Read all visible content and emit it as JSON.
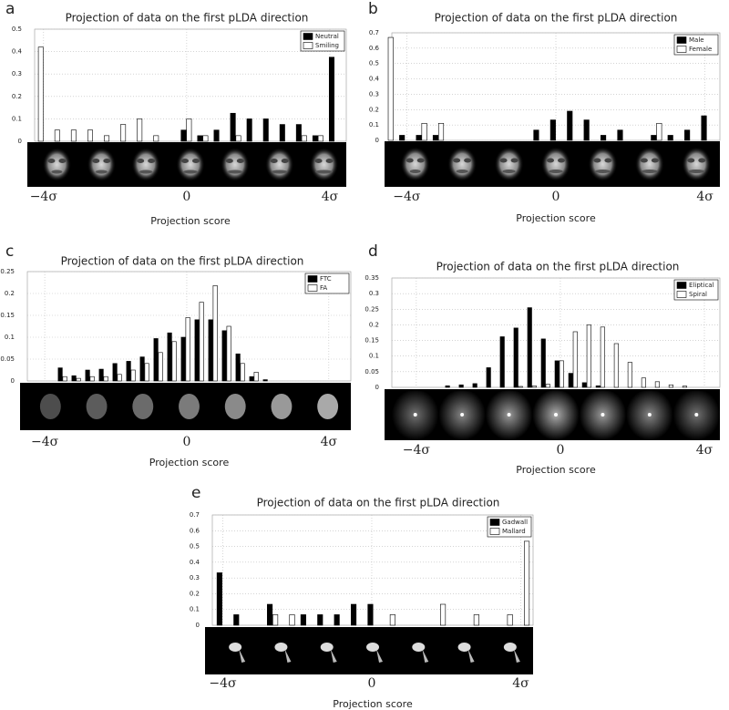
{
  "chart_data": [
    {
      "type": "bar",
      "label": "a",
      "title": "Projection of data on the first pLDA direction",
      "xlabel": "Projection score",
      "x": [
        -4.2,
        -3.74,
        -3.28,
        -2.82,
        -2.36,
        -1.9,
        -1.44,
        -0.98,
        -0.52,
        -0.06,
        0.4,
        0.86,
        1.32,
        1.78,
        2.24,
        2.7,
        3.16,
        3.62,
        4.08
      ],
      "series": [
        {
          "name": "Neutral",
          "color": "#000000",
          "values": [
            0,
            0,
            0,
            0,
            0,
            0,
            0,
            0,
            0,
            0.05,
            0.025,
            0.05,
            0.125,
            0.1,
            0.1,
            0.075,
            0.075,
            0.025,
            0.375
          ]
        },
        {
          "name": "Smiling",
          "color": "#ffffff",
          "values": [
            0.42,
            0.05,
            0.05,
            0.05,
            0.025,
            0.075,
            0.1,
            0.025,
            0,
            0.1,
            0.025,
            0,
            0.025,
            0,
            0,
            0,
            0.025,
            0.025,
            0
          ]
        }
      ],
      "xlim": [
        -4.25,
        4.46
      ],
      "xticks": [
        {
          "value": -4,
          "label": "−4σ"
        },
        0,
        {
          "value": 4,
          "label": "4σ"
        }
      ],
      "ylim": [
        0,
        0.5
      ],
      "yticks": [
        0,
        0.1,
        0.2,
        0.3,
        0.4,
        0.5
      ],
      "grid": true,
      "legend": "upper right"
    },
    {
      "type": "bar",
      "label": "b",
      "title": "Projection of data on the first pLDA direction",
      "xlabel": "Projection score",
      "x": [
        -4.55,
        -4.1,
        -3.65,
        -3.2,
        -2.75,
        -2.3,
        -1.85,
        -1.4,
        -0.95,
        -0.5,
        -0.05,
        0.4,
        0.85,
        1.3,
        1.75,
        2.2,
        2.65,
        3.1,
        3.55,
        4.0
      ],
      "series": [
        {
          "name": "Male",
          "color": "#000000",
          "values": [
            0,
            0.033,
            0.033,
            0.033,
            0,
            0,
            0,
            0,
            0,
            0.067,
            0.133,
            0.19,
            0.133,
            0.033,
            0.067,
            0,
            0.033,
            0.033,
            0.067,
            0.16
          ]
        },
        {
          "name": "Female",
          "color": "#ffffff",
          "values": [
            0.67,
            0,
            0.111,
            0.111,
            0,
            0,
            0,
            0,
            0,
            0,
            0,
            0,
            0,
            0,
            0,
            0,
            0.111,
            0,
            0,
            0
          ]
        }
      ],
      "xlim": [
        -4.4,
        4.4
      ],
      "xticks": [
        {
          "value": -4,
          "label": "−4σ"
        },
        0,
        {
          "value": 4,
          "label": "4σ"
        }
      ],
      "ylim": [
        0,
        0.7
      ],
      "yticks": [
        0,
        0.1,
        0.2,
        0.3,
        0.4,
        0.5,
        0.6,
        0.7
      ],
      "grid": true,
      "legend": "upper right"
    },
    {
      "type": "bar",
      "label": "c",
      "title": "Projection of data on the first pLDA direction",
      "xlabel": "Projection score",
      "x": [
        -3.54,
        -3.155,
        -2.77,
        -2.385,
        -2.0,
        -1.615,
        -1.23,
        -0.845,
        -0.46,
        -0.075,
        0.31,
        0.695,
        1.08,
        1.465,
        1.85,
        2.235
      ],
      "series": [
        {
          "name": "FTC",
          "color": "#000000",
          "values": [
            0.03,
            0.012,
            0.025,
            0.027,
            0.04,
            0.045,
            0.055,
            0.097,
            0.11,
            0.1,
            0.14,
            0.14,
            0.115,
            0.062,
            0.01,
            0.003
          ]
        },
        {
          "name": "FA",
          "color": "#ffffff",
          "values": [
            0.01,
            0.006,
            0.01,
            0.01,
            0.015,
            0.025,
            0.04,
            0.065,
            0.09,
            0.145,
            0.18,
            0.218,
            0.125,
            0.04,
            0.02,
            0
          ]
        }
      ],
      "xlim": [
        -4.49,
        4.62
      ],
      "xticks": [
        {
          "value": -4,
          "label": "−4σ"
        },
        0,
        {
          "value": 4,
          "label": "4σ"
        }
      ],
      "ylim": [
        0,
        0.25
      ],
      "yticks": [
        0,
        0.05,
        0.1,
        0.15,
        0.2,
        0.25
      ],
      "grid": true,
      "legend": "upper right"
    },
    {
      "type": "bar",
      "label": "d",
      "title": "Projection of data on the first pLDA direction",
      "xlabel": "Projection score",
      "x": [
        -3.11,
        -2.73,
        -2.35,
        -1.97,
        -1.59,
        -1.21,
        -0.83,
        -0.45,
        -0.07,
        0.31,
        0.69,
        1.07,
        1.45,
        1.83,
        2.21,
        2.59,
        2.97,
        3.35
      ],
      "series": [
        {
          "name": "Eliptical",
          "color": "#000000",
          "values": [
            0.005,
            0.008,
            0.012,
            0.063,
            0.162,
            0.19,
            0.255,
            0.155,
            0.085,
            0.045,
            0.015,
            0.005,
            0,
            0,
            0,
            0,
            0,
            0
          ]
        },
        {
          "name": "Spiral",
          "color": "#ffffff",
          "values": [
            0,
            0,
            0,
            0,
            0,
            0.003,
            0.005,
            0.01,
            0.085,
            0.178,
            0.2,
            0.193,
            0.14,
            0.08,
            0.03,
            0.018,
            0.008,
            0.004
          ]
        }
      ],
      "xlim": [
        -4.68,
        4.43
      ],
      "xticks": [
        {
          "value": -4,
          "label": "−4σ"
        },
        0,
        {
          "value": 4,
          "label": "4σ"
        }
      ],
      "ylim": [
        0,
        0.35
      ],
      "yticks": [
        0,
        0.05,
        0.1,
        0.15,
        0.2,
        0.25,
        0.3,
        0.35
      ],
      "grid": true,
      "legend": "upper right"
    },
    {
      "type": "bar",
      "label": "e",
      "title": "Projection of data on the first pLDA direction",
      "xlabel": "Projection score",
      "x": [
        -4.06,
        -3.61,
        -3.16,
        -2.71,
        -2.26,
        -1.81,
        -1.36,
        -0.91,
        -0.46,
        -0.01,
        0.44,
        0.89,
        1.34,
        1.79,
        2.24,
        2.69,
        3.14,
        3.59,
        4.04
      ],
      "series": [
        {
          "name": "Gadwall",
          "color": "#000000",
          "values": [
            0.333,
            0.067,
            0,
            0.133,
            0,
            0.067,
            0.067,
            0.067,
            0.133,
            0.133,
            0,
            0,
            0,
            0,
            0,
            0,
            0,
            0,
            0
          ]
        },
        {
          "name": "Mallard",
          "color": "#ffffff",
          "values": [
            0,
            0,
            0,
            0.067,
            0.067,
            0,
            0,
            0,
            0,
            0,
            0.067,
            0,
            0,
            0.133,
            0,
            0.067,
            0,
            0.067,
            0.533
          ]
        }
      ],
      "xlim": [
        -4.28,
        4.33
      ],
      "xticks": [
        {
          "value": -4,
          "label": "−4σ"
        },
        0,
        {
          "value": 4,
          "label": "4σ"
        }
      ],
      "ylim": [
        0,
        0.7
      ],
      "yticks": [
        0,
        0.1,
        0.2,
        0.3,
        0.4,
        0.5,
        0.6,
        0.7
      ],
      "grid": true,
      "legend": "upper right"
    }
  ]
}
